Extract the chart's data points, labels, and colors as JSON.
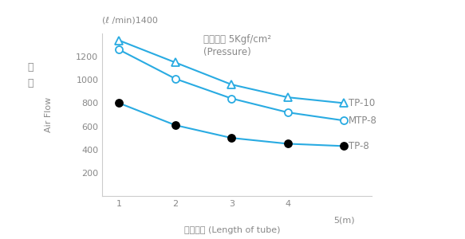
{
  "title_annotation_line1": "一次圧力 5Kgf/cm²",
  "title_annotation_line2": "(Pressure)",
  "ylabel_top": "(ℓ /min)1400",
  "ylabel_rotated_line1": "流",
  "ylabel_rotated_line2": "量",
  "ylabel_rotated_en": "Air Flow",
  "xlabel_jp": "配管長さ (Length of tube)",
  "xlabel_end": "5(m)",
  "x_values": [
    1,
    2,
    3,
    4,
    5
  ],
  "TP10_y": [
    1340,
    1150,
    960,
    850,
    800
  ],
  "MTP8_y": [
    1260,
    1010,
    840,
    720,
    650
  ],
  "TP8_y": [
    800,
    610,
    500,
    450,
    430
  ],
  "TP10_label": "TP-10",
  "MTP8_label": "MTP-8",
  "TP8_label": "TP-8",
  "line_color": "#29abe2",
  "black_color": "#000000",
  "text_color": "#888888",
  "ylim": [
    0,
    1400
  ],
  "xlim": [
    0.7,
    5.5
  ],
  "yticks": [
    0,
    200,
    400,
    600,
    800,
    1000,
    1200,
    1400
  ],
  "xticks": [
    1,
    2,
    3,
    4,
    5
  ],
  "bg_color": "#ffffff"
}
